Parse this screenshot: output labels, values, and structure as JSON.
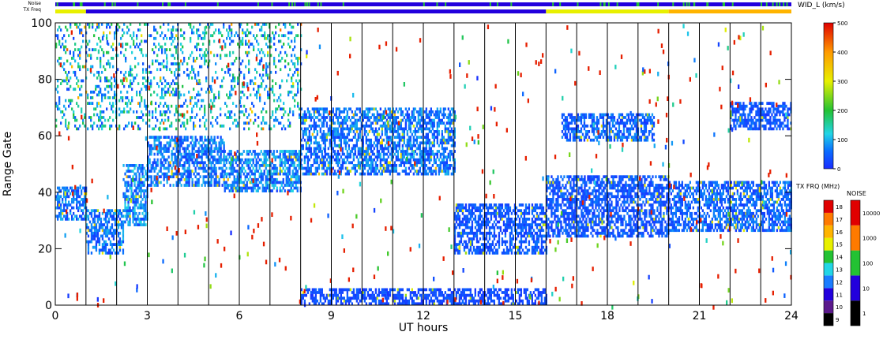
{
  "chart_data": [
    {
      "type": "heatmap",
      "title": "",
      "xlabel": "UT hours",
      "ylabel": "Range Gate",
      "xlim": [
        0,
        24
      ],
      "ylim": [
        0,
        100
      ],
      "xticks": [
        0,
        3,
        6,
        9,
        12,
        15,
        18,
        21,
        24
      ],
      "xtick_labels": [
        "0",
        "3",
        "6",
        "9",
        "12",
        "15",
        "18",
        "21",
        "24"
      ],
      "yticks": [
        0,
        20,
        40,
        60,
        80,
        100
      ],
      "ytick_labels": [
        "0",
        "20",
        "40",
        "60",
        "80",
        "100"
      ],
      "vertical_markers_hours": [
        1,
        2,
        3,
        4,
        5,
        6,
        7,
        8,
        9,
        10,
        11,
        12,
        13,
        14,
        15,
        16,
        17,
        18,
        19,
        20,
        21,
        22,
        23
      ],
      "colorbar_label": "WID_L (km/s)",
      "colorbar_range": [
        0,
        500
      ],
      "colorbar_ticks": [
        "0",
        "100",
        "200",
        "300",
        "400",
        "500"
      ],
      "scatter_bands": [
        {
          "t0": 0.0,
          "t1": 1.0,
          "g0": 30,
          "g1": 42,
          "wid": 60
        },
        {
          "t0": 1.0,
          "t1": 2.2,
          "g0": 18,
          "g1": 34,
          "wid": 60
        },
        {
          "t0": 2.2,
          "t1": 3.0,
          "g0": 28,
          "g1": 50,
          "wid": 70
        },
        {
          "t0": 3.0,
          "t1": 5.5,
          "g0": 42,
          "g1": 60,
          "wid": 60
        },
        {
          "t0": 5.5,
          "t1": 8.0,
          "g0": 40,
          "g1": 55,
          "wid": 70
        },
        {
          "t0": 8.0,
          "t1": 13.0,
          "g0": 46,
          "g1": 70,
          "wid": 60
        },
        {
          "t0": 13.0,
          "t1": 16.0,
          "g0": 18,
          "g1": 36,
          "wid": 40
        },
        {
          "t0": 16.0,
          "t1": 20.0,
          "g0": 24,
          "g1": 46,
          "wid": 40
        },
        {
          "t0": 20.0,
          "t1": 24.0,
          "g0": 26,
          "g1": 44,
          "wid": 50
        },
        {
          "t0": 16.5,
          "t1": 19.5,
          "g0": 58,
          "g1": 68,
          "wid": 50
        },
        {
          "t0": 22.0,
          "t1": 24.0,
          "g0": 62,
          "g1": 72,
          "wid": 40
        },
        {
          "t0": 0.0,
          "t1": 8.0,
          "g0": 62,
          "g1": 100,
          "wid": 110
        },
        {
          "t0": 8.0,
          "t1": 16.0,
          "g0": 0,
          "g1": 6,
          "wid": 30
        }
      ]
    },
    {
      "type": "bar",
      "title": "",
      "label": "TX FRQ (MHz)",
      "colorbar_ticks": [
        "9",
        "10",
        "11",
        "12",
        "13",
        "14",
        "15",
        "16",
        "17",
        "18"
      ],
      "colors": [
        "#000000",
        "#5b1a8c",
        "#2200dd",
        "#1a7cff",
        "#22d5e6",
        "#23c233",
        "#e8f000",
        "#ffb400",
        "#ff7a00",
        "#e00000"
      ],
      "strip_label": "TX Freq",
      "segments": [
        {
          "t0": 0.0,
          "t1": 1.0,
          "freq": 15
        },
        {
          "t0": 1.0,
          "t1": 16.0,
          "freq": 11
        },
        {
          "t0": 16.0,
          "t1": 20.0,
          "freq": 15
        },
        {
          "t0": 20.0,
          "t1": 24.0,
          "freq": 16
        }
      ]
    },
    {
      "type": "bar",
      "title": "",
      "label": "NOISE",
      "colorbar_ticks": [
        "1",
        "10",
        "100",
        "1000",
        "10000"
      ],
      "colors": [
        "#000000",
        "#2200dd",
        "#23c233",
        "#ff7a00",
        "#e00000"
      ],
      "strip_label": "Noise",
      "segments": [
        {
          "t0": 0.0,
          "t1": 24.0,
          "level": "10"
        }
      ]
    }
  ]
}
